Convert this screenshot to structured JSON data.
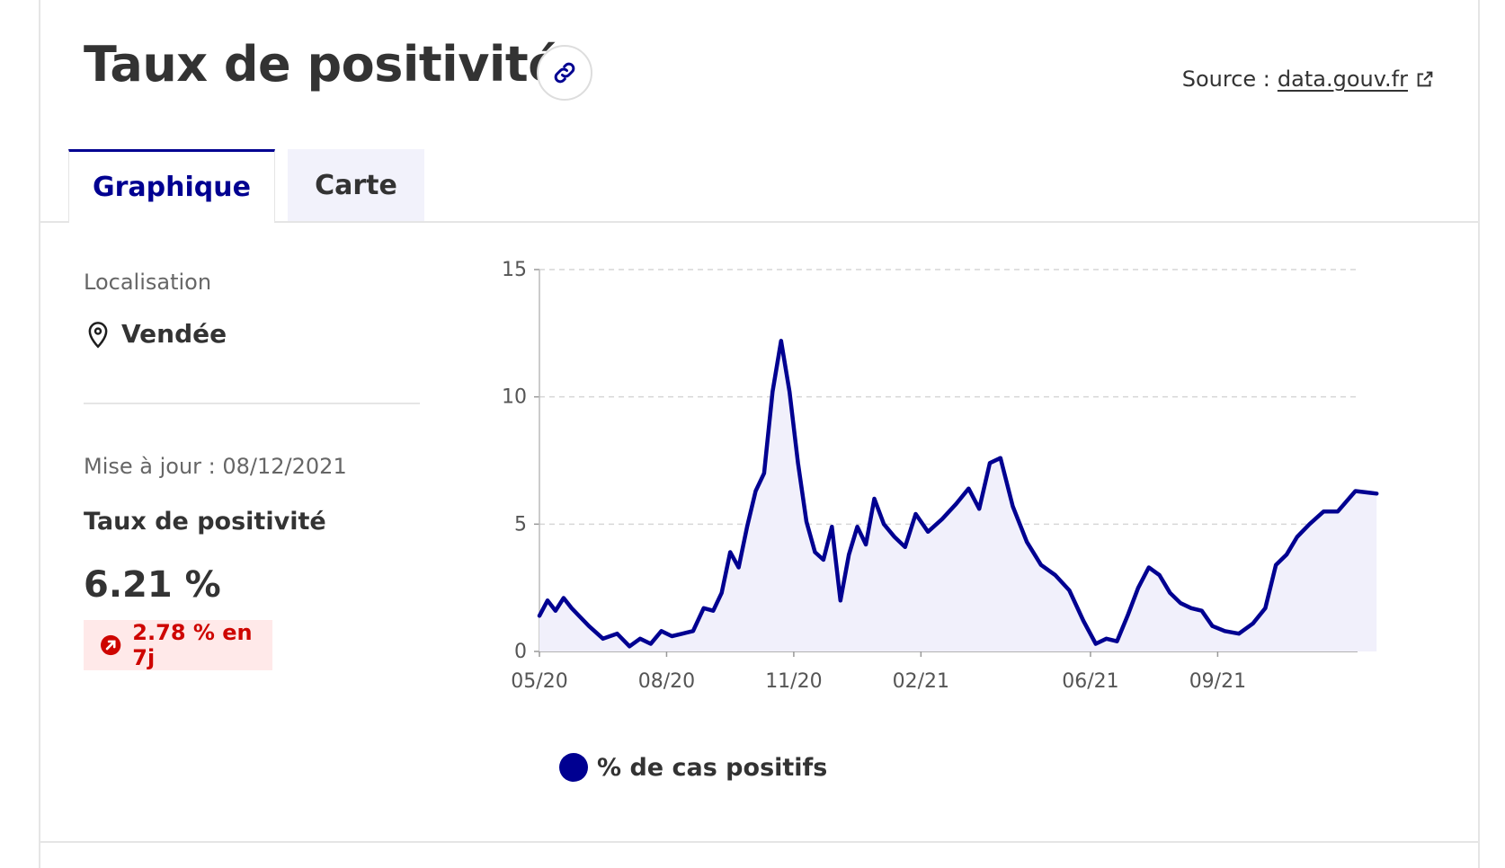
{
  "header": {
    "title": "Taux de positivité",
    "source_label": "Source :",
    "source_link": "data.gouv.fr"
  },
  "tabs": [
    {
      "label": "Graphique",
      "active": true
    },
    {
      "label": "Carte",
      "active": false
    }
  ],
  "sidebar": {
    "location_label": "Localisation",
    "location_value": "Vendée",
    "update_text": "Mise à jour : 08/12/2021",
    "metric_label": "Taux de positivité",
    "metric_value": "6.21 %",
    "change_text": "2.78 % en 7j"
  },
  "colors": {
    "accent": "#000091",
    "area_fill": "#f1f0fb",
    "negative": "#ce0500",
    "badge_bg": "#ffe9e9"
  },
  "icons": [
    "link-icon",
    "external-link-icon",
    "location-pin-icon",
    "trend-up-icon"
  ],
  "chart_data": {
    "type": "area",
    "title": "",
    "xlabel": "",
    "ylabel": "",
    "ylim": [
      0,
      15
    ],
    "yticks": [
      0,
      5,
      10,
      15
    ],
    "xlim": [
      "05/20",
      "12/21"
    ],
    "xtick_labels": [
      "05/20",
      "08/20",
      "11/20",
      "02/21",
      "06/21",
      "09/21"
    ],
    "grid": "horizontal dashed",
    "legend_position": "bottom-left",
    "series": [
      {
        "name": "% de cas positifs",
        "color": "#000091",
        "points": [
          [
            "05/2020",
            1.4
          ],
          [
            "05/2020",
            2.0
          ],
          [
            "05/2020",
            1.6
          ],
          [
            "05/2020",
            2.1
          ],
          [
            "05/2020",
            1.7
          ],
          [
            "06/2020",
            1.0
          ],
          [
            "06/2020",
            0.5
          ],
          [
            "06/2020",
            0.7
          ],
          [
            "07/2020",
            0.2
          ],
          [
            "07/2020",
            0.5
          ],
          [
            "07/2020",
            0.3
          ],
          [
            "07/2020",
            0.8
          ],
          [
            "08/2020",
            0.6
          ],
          [
            "08/2020",
            0.7
          ],
          [
            "08/2020",
            0.8
          ],
          [
            "08/2020",
            1.7
          ],
          [
            "09/2020",
            1.6
          ],
          [
            "09/2020",
            2.3
          ],
          [
            "09/2020",
            3.9
          ],
          [
            "09/2020",
            3.3
          ],
          [
            "09/2020",
            4.9
          ],
          [
            "10/2020",
            6.3
          ],
          [
            "10/2020",
            7.0
          ],
          [
            "10/2020",
            10.2
          ],
          [
            "10/2020",
            12.2
          ],
          [
            "10/2020",
            10.2
          ],
          [
            "11/2020",
            7.4
          ],
          [
            "11/2020",
            5.1
          ],
          [
            "11/2020",
            3.9
          ],
          [
            "11/2020",
            3.6
          ],
          [
            "11/2020",
            4.9
          ],
          [
            "12/2020",
            2.0
          ],
          [
            "12/2020",
            3.8
          ],
          [
            "12/2020",
            4.9
          ],
          [
            "12/2020",
            4.2
          ],
          [
            "12/2020",
            6.0
          ],
          [
            "01/2021",
            5.0
          ],
          [
            "01/2021",
            4.5
          ],
          [
            "01/2021",
            4.1
          ],
          [
            "01/2021",
            5.4
          ],
          [
            "02/2021",
            4.7
          ],
          [
            "02/2021",
            5.2
          ],
          [
            "02/2021",
            5.8
          ],
          [
            "03/2021",
            6.4
          ],
          [
            "03/2021",
            5.6
          ],
          [
            "03/2021",
            7.4
          ],
          [
            "03/2021",
            7.6
          ],
          [
            "04/2021",
            5.7
          ],
          [
            "04/2021",
            4.3
          ],
          [
            "04/2021",
            3.4
          ],
          [
            "05/2021",
            3.0
          ],
          [
            "05/2021",
            2.4
          ],
          [
            "05/2021",
            1.2
          ],
          [
            "06/2021",
            0.3
          ],
          [
            "06/2021",
            0.5
          ],
          [
            "06/2021",
            0.4
          ],
          [
            "06/2021",
            1.4
          ],
          [
            "07/2021",
            2.5
          ],
          [
            "07/2021",
            3.3
          ],
          [
            "07/2021",
            3.0
          ],
          [
            "07/2021",
            2.3
          ],
          [
            "08/2021",
            1.9
          ],
          [
            "08/2021",
            1.7
          ],
          [
            "08/2021",
            1.6
          ],
          [
            "08/2021",
            1.0
          ],
          [
            "09/2021",
            0.8
          ],
          [
            "09/2021",
            0.7
          ],
          [
            "09/2021",
            1.1
          ],
          [
            "10/2021",
            1.7
          ],
          [
            "10/2021",
            3.4
          ],
          [
            "10/2021",
            3.8
          ],
          [
            "10/2021",
            4.5
          ],
          [
            "11/2021",
            5.0
          ],
          [
            "11/2021",
            5.5
          ],
          [
            "11/2021",
            5.5
          ],
          [
            "12/2021",
            6.3
          ],
          [
            "12/2021",
            6.2
          ]
        ]
      }
    ]
  }
}
